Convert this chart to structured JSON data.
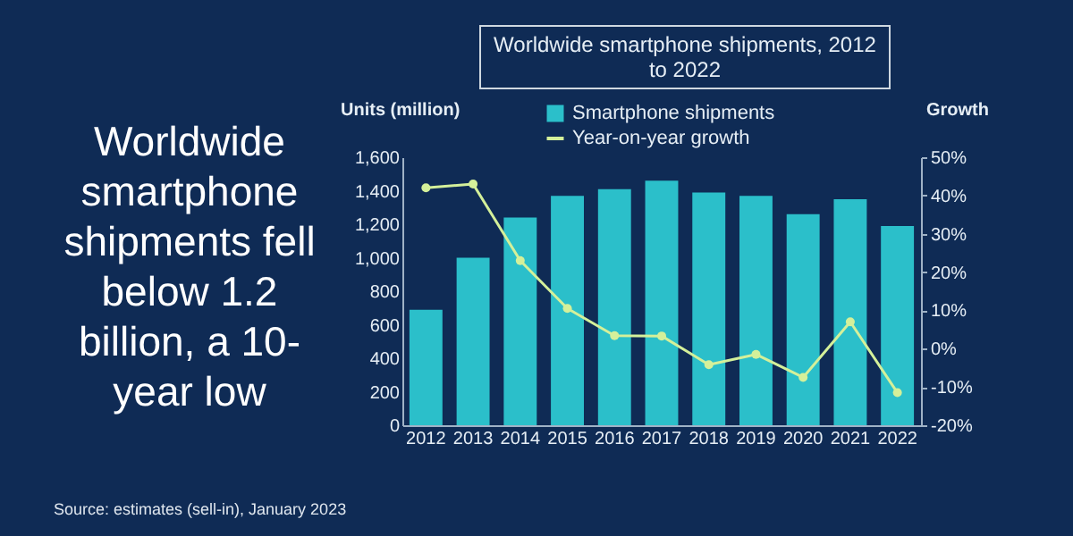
{
  "chart_data": {
    "type": "bar",
    "title": "Worldwide smartphone shipments, 2012 to 2022",
    "categories": [
      "2012",
      "2013",
      "2014",
      "2015",
      "2016",
      "2017",
      "2018",
      "2019",
      "2020",
      "2021",
      "2022"
    ],
    "series": [
      {
        "name": "Smartphone shipments",
        "color": "#2bbfca",
        "values": [
          690,
          1000,
          1240,
          1370,
          1410,
          1460,
          1390,
          1370,
          1260,
          1350,
          1190
        ]
      },
      {
        "name": "Year-on-year growth",
        "type": "line",
        "axis": "y2",
        "color": "#d4f09a",
        "values": [
          42,
          43,
          23,
          10.5,
          3.4,
          3.3,
          -4.2,
          -1.5,
          -7.5,
          7,
          -11.5
        ]
      }
    ],
    "ylabel": "Units (million)",
    "y2label": "Growth",
    "ylim": [
      0,
      1600
    ],
    "yticks": [
      0,
      200,
      400,
      600,
      {
        "value": 800,
        "label": "800"
      },
      {
        "value": 1000,
        "label": "1,000"
      },
      {
        "value": 1200,
        "label": "1,200"
      },
      {
        "value": 1400,
        "label": "1,400"
      },
      {
        "value": 1600,
        "label": "1,600"
      }
    ],
    "y2lim": [
      -20,
      50
    ],
    "y2ticks": [
      {
        "value": -20,
        "label": "-20%"
      },
      {
        "value": -10,
        "label": "-10%"
      },
      {
        "value": 0,
        "label": "0%"
      },
      {
        "value": 10,
        "label": "10%"
      },
      {
        "value": 20,
        "label": "20%"
      },
      {
        "value": 30,
        "label": "30%"
      },
      {
        "value": 40,
        "label": "40%"
      },
      {
        "value": 50,
        "label": "50%"
      }
    ],
    "grid": false,
    "legend": "top",
    "marker": "circle",
    "annotations": [
      "Worldwide smartphone shipments fell below 1.2 billion, a 10-year low",
      "Source: estimates (sell-in), January 2023"
    ]
  }
}
